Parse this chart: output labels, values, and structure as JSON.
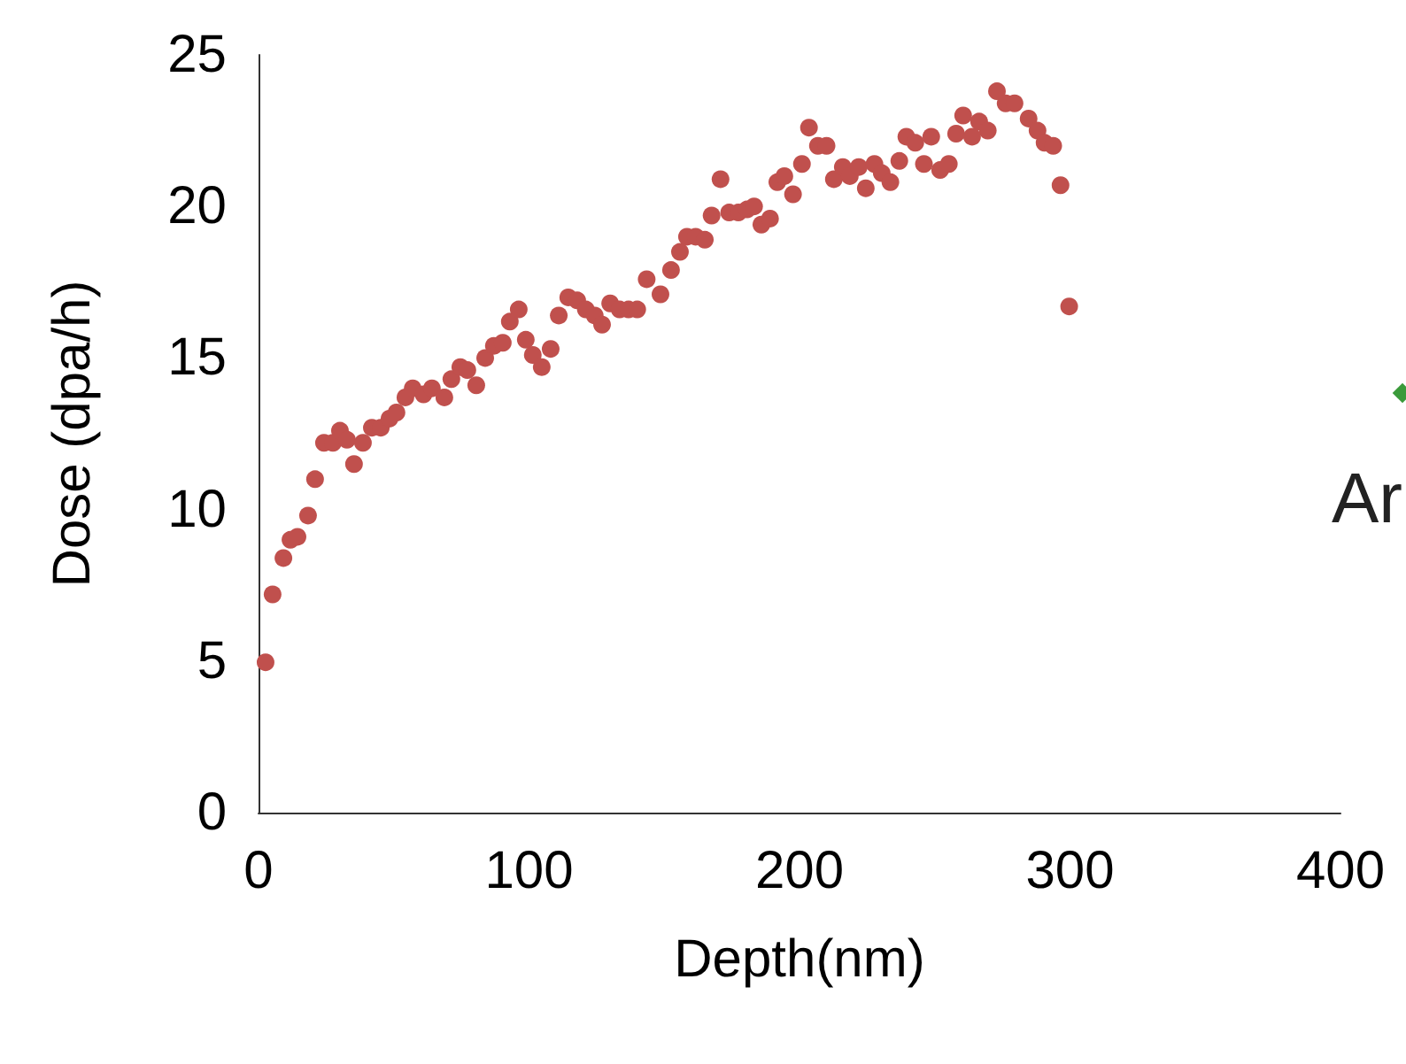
{
  "chart_data": {
    "type": "scatter",
    "xlabel": "Depth(nm)",
    "ylabel": "Dose (dpa/h)",
    "annotations": [
      "Ar"
    ],
    "xlim": [
      0,
      400
    ],
    "xticks": [
      0,
      100,
      200,
      300,
      400
    ],
    "ylim": [
      0,
      25
    ],
    "yticks": [
      0,
      5,
      10,
      15,
      20,
      25
    ],
    "grid": false,
    "marker": "circle",
    "series": [
      {
        "color": "#c0504d",
        "x": [
          2.6,
          5.2,
          9.2,
          11.8,
          14.4,
          18.3,
          20.9,
          24.2,
          27.5,
          30.1,
          32.7,
          35.3,
          38.6,
          41.9,
          45.2,
          48.4,
          51,
          54.3,
          57,
          61,
          64.1,
          68.7,
          71.3,
          74.6,
          77.2,
          80.5,
          83.8,
          87,
          90.3,
          92.9,
          96.2,
          98.8,
          101.4,
          104.7,
          108,
          111,
          114.5,
          117.8,
          121,
          124.3,
          127,
          130,
          133.5,
          136.8,
          140,
          143.5,
          148.6,
          152.5,
          155.8,
          158.4,
          161.6,
          165,
          167.5,
          170.8,
          174,
          177.4,
          180.6,
          183.2,
          185.9,
          189.1,
          191.8,
          194.4,
          197.6,
          200.9,
          203.5,
          206.8,
          210,
          212.7,
          216,
          218.6,
          221.9,
          224.5,
          227.7,
          230.4,
          233.6,
          236.9,
          239.5,
          242.8,
          246,
          248.7,
          252,
          255.2,
          257.9,
          260.5,
          263.8,
          266.4,
          269.6,
          273,
          276.2,
          279.5,
          284.7,
          288,
          290.6,
          293.8,
          296.5,
          299.7
        ],
        "values": [
          4.96,
          7.2,
          8.4,
          9,
          9.1,
          9.8,
          11,
          12.2,
          12.2,
          12.6,
          12.3,
          11.5,
          12.2,
          12.7,
          12.7,
          13,
          13.2,
          13.7,
          14,
          13.8,
          14,
          13.7,
          14.3,
          14.7,
          14.6,
          14.1,
          15,
          15.4,
          15.5,
          16.2,
          16.6,
          15.6,
          15.1,
          14.7,
          15.3,
          16.4,
          17,
          16.9,
          16.6,
          16.4,
          16.1,
          16.8,
          16.6,
          16.6,
          16.6,
          17.6,
          17.1,
          17.9,
          18.5,
          19,
          19,
          18.9,
          19.7,
          20.9,
          19.8,
          19.8,
          19.9,
          20,
          19.4,
          19.6,
          20.8,
          21,
          20.4,
          21.4,
          22.6,
          22,
          22,
          20.9,
          21.3,
          21,
          21.3,
          20.6,
          21.4,
          21.1,
          20.8,
          21.5,
          22.3,
          22.1,
          21.4,
          22.3,
          21.2,
          21.4,
          22.4,
          23,
          22.3,
          22.8,
          22.5,
          23.8,
          23.4,
          23.4,
          22.9,
          22.5,
          22.1,
          22,
          20.7,
          16.7
        ]
      }
    ]
  }
}
